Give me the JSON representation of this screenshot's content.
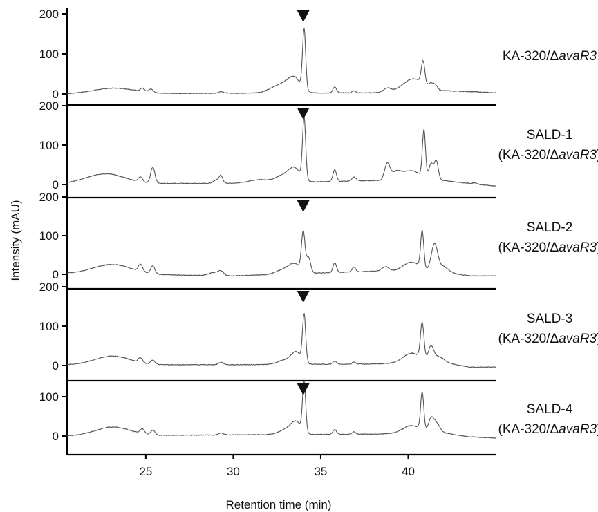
{
  "chart_data": {
    "type": "line",
    "xlabel": "Retention time (min)",
    "ylabel": "Intensity (mAU)",
    "xlim": [
      20.5,
      45
    ],
    "ylim": [
      -15,
      210
    ],
    "x_ticks": [
      25,
      30,
      35,
      40
    ],
    "y_ticks": [
      0,
      100,
      200
    ],
    "marker": {
      "symbol": "▼",
      "x": 34.0
    },
    "panels": [
      {
        "label_line1": "KA-320/Δ",
        "label_italic": "avaR3",
        "label_suffix": "",
        "label_line2": "",
        "peaks": [
          [
            23.2,
            14,
            1.2
          ],
          [
            24.8,
            8,
            0.12
          ],
          [
            25.3,
            8,
            0.12
          ],
          [
            29.3,
            4,
            0.15
          ],
          [
            32.8,
            22,
            0.6
          ],
          [
            33.5,
            30,
            0.35
          ],
          [
            34.05,
            150,
            0.09
          ],
          [
            35.8,
            15,
            0.1
          ],
          [
            36.9,
            5,
            0.1
          ],
          [
            38.8,
            10,
            0.2
          ],
          [
            40.3,
            32,
            0.6
          ],
          [
            40.85,
            55,
            0.1
          ],
          [
            41.3,
            12,
            0.12
          ],
          [
            41.55,
            12,
            0.12
          ]
        ],
        "baseline": [
          [
            20.5,
            0
          ],
          [
            30,
            2
          ],
          [
            38,
            3
          ],
          [
            42,
            8
          ],
          [
            43.5,
            6
          ],
          [
            45,
            3
          ]
        ]
      },
      {
        "label_line1": "SALD-1",
        "label_italic": "",
        "label_suffix": "",
        "label_line2": "(KA-320/Δ",
        "label_line2_italic": "avaR3",
        "label_line2_suffix": ")",
        "peaks": [
          [
            22.7,
            25,
            1.1
          ],
          [
            24.7,
            12,
            0.12
          ],
          [
            25.4,
            40,
            0.12
          ],
          [
            29.1,
            10,
            0.2
          ],
          [
            29.3,
            14,
            0.1
          ],
          [
            31.5,
            8,
            0.6
          ],
          [
            32.8,
            15,
            0.4
          ],
          [
            33.5,
            35,
            0.35
          ],
          [
            34.05,
            155,
            0.09
          ],
          [
            35.8,
            30,
            0.1
          ],
          [
            36.9,
            10,
            0.12
          ],
          [
            38.8,
            40,
            0.15
          ],
          [
            39.3,
            20,
            0.3
          ],
          [
            40.2,
            25,
            0.5
          ],
          [
            40.9,
            120,
            0.09
          ],
          [
            41.3,
            40,
            0.12
          ],
          [
            41.6,
            50,
            0.12
          ],
          [
            43.8,
            3,
            0.1
          ]
        ],
        "baseline": [
          [
            20.5,
            2
          ],
          [
            30,
            3
          ],
          [
            36,
            8
          ],
          [
            38,
            10
          ],
          [
            42,
            10
          ],
          [
            43.5,
            3
          ],
          [
            45,
            -4
          ]
        ]
      },
      {
        "label_line1": "SALD-2",
        "label_italic": "",
        "label_suffix": "",
        "label_line2": "(KA-320/Δ",
        "label_line2_italic": "avaR3",
        "label_line2_suffix": ")",
        "peaks": [
          [
            23.1,
            25,
            1.1
          ],
          [
            24.7,
            18,
            0.12
          ],
          [
            25.4,
            20,
            0.12
          ],
          [
            28.9,
            8,
            0.3
          ],
          [
            29.3,
            10,
            0.15
          ],
          [
            32.8,
            10,
            0.4
          ],
          [
            33.5,
            25,
            0.35
          ],
          [
            34.0,
            100,
            0.1
          ],
          [
            34.3,
            40,
            0.12
          ],
          [
            35.8,
            25,
            0.1
          ],
          [
            36.9,
            12,
            0.1
          ],
          [
            38.7,
            12,
            0.2
          ],
          [
            40.2,
            25,
            0.5
          ],
          [
            40.8,
            95,
            0.09
          ],
          [
            41.5,
            70,
            0.18
          ],
          [
            42.0,
            15,
            0.3
          ]
        ],
        "baseline": [
          [
            20.5,
            2
          ],
          [
            30,
            -4
          ],
          [
            38,
            8
          ],
          [
            42,
            5
          ],
          [
            43.5,
            -4
          ],
          [
            45,
            -4
          ]
        ]
      },
      {
        "label_line1": "SALD-3",
        "label_italic": "",
        "label_suffix": "",
        "label_line2": "(KA-320/Δ",
        "label_line2_italic": "avaR3",
        "label_line2_suffix": ")",
        "peaks": [
          [
            23.1,
            22,
            1.0
          ],
          [
            24.7,
            12,
            0.12
          ],
          [
            25.4,
            10,
            0.12
          ],
          [
            29.3,
            6,
            0.15
          ],
          [
            32.9,
            10,
            0.4
          ],
          [
            33.6,
            30,
            0.3
          ],
          [
            34.05,
            120,
            0.09
          ],
          [
            35.8,
            8,
            0.1
          ],
          [
            36.9,
            5,
            0.1
          ],
          [
            40.2,
            25,
            0.5
          ],
          [
            40.8,
            90,
            0.1
          ],
          [
            41.3,
            35,
            0.15
          ],
          [
            41.7,
            15,
            0.3
          ]
        ],
        "baseline": [
          [
            20.5,
            2
          ],
          [
            30,
            2
          ],
          [
            38,
            4
          ],
          [
            42,
            8
          ],
          [
            43.5,
            -4
          ],
          [
            45,
            -4
          ]
        ]
      },
      {
        "label_line1": "SALD-4",
        "label_italic": "",
        "label_suffix": "",
        "label_line2": "(KA-320/Δ",
        "label_line2_italic": "avaR3",
        "label_line2_suffix": ")",
        "peaks": [
          [
            23.1,
            22,
            1.0
          ],
          [
            24.8,
            12,
            0.12
          ],
          [
            25.4,
            12,
            0.12
          ],
          [
            29.3,
            5,
            0.15
          ],
          [
            33.0,
            12,
            0.4
          ],
          [
            33.6,
            30,
            0.3
          ],
          [
            34.05,
            125,
            0.09
          ],
          [
            35.8,
            12,
            0.1
          ],
          [
            36.9,
            6,
            0.1
          ],
          [
            40.2,
            20,
            0.5
          ],
          [
            40.8,
            95,
            0.09
          ],
          [
            41.3,
            30,
            0.15
          ],
          [
            41.6,
            25,
            0.2
          ]
        ],
        "baseline": [
          [
            20.5,
            0
          ],
          [
            30,
            3
          ],
          [
            38,
            5
          ],
          [
            42,
            8
          ],
          [
            43.5,
            -2
          ],
          [
            45,
            -5
          ]
        ]
      }
    ]
  }
}
